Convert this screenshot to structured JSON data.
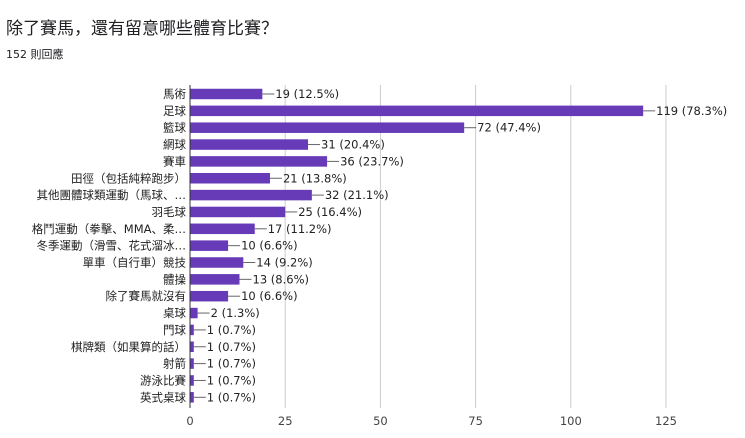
{
  "question": {
    "title": "除了賽馬，還有留意哪些體育比賽？",
    "responses": "152 則回應"
  },
  "colors": {
    "bar": "#673ab7",
    "grid": "#cccccc",
    "axis": "#333333"
  },
  "chart_data": {
    "type": "bar",
    "orientation": "horizontal",
    "categories": [
      "馬術",
      "足球",
      "籃球",
      "網球",
      "賽車",
      "田徑（包括純粹跑步）",
      "其他團體球類運動（馬球、…",
      "羽毛球",
      "格鬥運動（拳擊、MMA、柔…",
      "冬季運動（滑雪、花式溜冰…",
      "單車（自行車）競技",
      "體操",
      "除了賽馬就沒有",
      "桌球",
      "門球",
      "棋牌類（如果算的話）",
      "射箭",
      "游泳比賽",
      "英式桌球"
    ],
    "values": [
      19,
      119,
      72,
      31,
      36,
      21,
      32,
      25,
      17,
      10,
      14,
      13,
      10,
      2,
      1,
      1,
      1,
      1,
      1
    ],
    "data_labels": [
      "19 (12.5%)",
      "119 (78.3%)",
      "72 (47.4%)",
      "31 (20.4%)",
      "36 (23.7%)",
      "21 (13.8%)",
      "32 (21.1%)",
      "25 (16.4%)",
      "17 (11.2%)",
      "10 (6.6%)",
      "14 (9.2%)",
      "13 (8.6%)",
      "10 (6.6%)",
      "2 (1.3%)",
      "1 (0.7%)",
      "1 (0.7%)",
      "1 (0.7%)",
      "1 (0.7%)",
      "1 (0.7%)"
    ],
    "xlim": [
      0,
      125
    ],
    "xticks": [
      0,
      25,
      50,
      75,
      100,
      125
    ],
    "grid": true
  }
}
